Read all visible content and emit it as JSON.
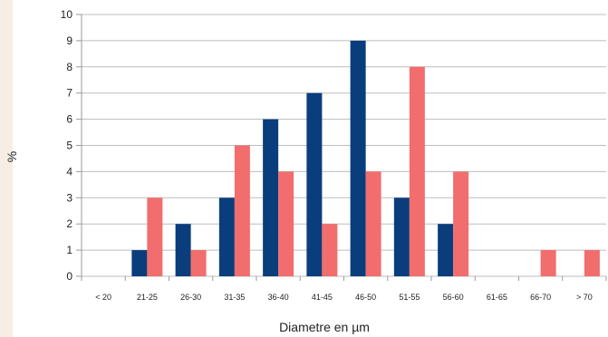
{
  "chart_data": {
    "type": "bar",
    "title": "",
    "xlabel": "Diametre en µm",
    "ylabel": "%",
    "ylim": [
      0,
      10
    ],
    "yticks": [
      "0",
      "1",
      "2",
      "3",
      "4",
      "5",
      "6",
      "7",
      "8",
      "9",
      "10"
    ],
    "categories": [
      "< 20",
      "21-25",
      "26-30",
      "31-35",
      "36-40",
      "41-45",
      "46-50",
      "51-55",
      "56-60",
      "61-65",
      "66-70",
      "> 70"
    ],
    "series": [
      {
        "values": [
          0,
          1,
          2,
          3,
          6,
          7,
          9,
          3,
          2,
          0,
          0,
          0
        ],
        "color": "#0a3d7c"
      },
      {
        "values": [
          0,
          3,
          1,
          5,
          4,
          2,
          4,
          8,
          4,
          0,
          1,
          1
        ],
        "color": "#f26d6d"
      }
    ],
    "grid": true,
    "legend": "none"
  }
}
